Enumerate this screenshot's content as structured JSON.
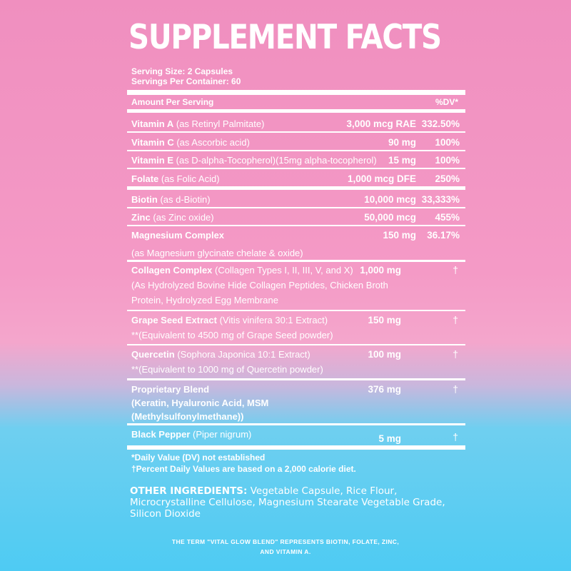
{
  "title": "SUPPLEMENT FACTS",
  "serving_size": "Serving Size: 2 Capsules",
  "servings_per_container": "Servings Per Container: 60",
  "amount_per_serving": "Amount Per Serving",
  "dv_header": "%DV*",
  "rows": [
    {
      "name": "Vitamin A",
      "desc": "(as Retinyl Palmitate)",
      "amount": "3,000 mcg RAE",
      "dv": "332.50%"
    },
    {
      "name": "Vitamin C",
      "desc": "(as Ascorbic acid)",
      "amount": "90 mg",
      "dv": "100%"
    },
    {
      "name": "Vitamin E",
      "desc": "(as D-alpha-Tocopherol)(15mg alpha-tocopherol)",
      "amount": "15 mg",
      "dv": "100%"
    },
    {
      "name": "Folate",
      "desc": "(as Folic Acid)",
      "amount": "1,000 mcg DFE",
      "dv": "250%"
    },
    {
      "name": "Biotin",
      "desc": "(as d-Biotin)",
      "amount": "10,000 mcg",
      "dv": "33,333%"
    },
    {
      "name": "Zinc",
      "desc": "(as Zinc oxide)",
      "amount": "50,000 mcg",
      "dv": "455%"
    },
    {
      "name": "Magnesium Complex",
      "desc": "(as Magnesium glycinate chelate & oxide)",
      "amount": "150 mg",
      "dv": "36.17%"
    },
    {
      "name": "Collagen Complex",
      "desc": "(Collagen Types I, II, III, V, and X)",
      "desc2": "(As Hydrolyzed Bovine Hide Collagen Peptides, Chicken Broth",
      "desc3": "Protein, Hydrolyzed Egg Membrane",
      "amount": "1,000 mg",
      "dv": "†"
    },
    {
      "name": "Grape Seed Extract",
      "desc": "(Vitis vinifera 30:1 Extract)",
      "desc2": "**(Equivalent to 4500 mg of Grape Seed powder)",
      "amount": "150 mg",
      "dv": "†"
    },
    {
      "name": "Quercetin",
      "desc": "(Sophora Japonica 10:1 Extract)",
      "desc2": "**(Equivalent to 1000 mg of Quercetin powder)",
      "amount": "100 mg",
      "dv": "†"
    },
    {
      "name": "Proprietary Blend",
      "desc2": "(Keratin, Hyaluronic Acid, MSM",
      "desc3": "(Methylsulfonylmethane))",
      "amount": "376 mg",
      "dv": "†"
    },
    {
      "name": "Black Pepper",
      "desc": "(Piper nigrum)",
      "amount": "5 mg",
      "dv": "†"
    }
  ],
  "footnotes": [
    "*Daily Value (DV) not established",
    "†Percent Daily Values are based on a 2,000 calorie diet."
  ],
  "other_ingredients_label": "OTHER INGREDIENTS:",
  "other_ingredients": "Vegetable Capsule, Rice Flour, Microcrystalline Cellulose, Magnesium Stearate Vegetable Grade, Silicon Dioxide",
  "term_note": "THE TERM \"VITAL GLOW BLEND\" REPRESENTS BIOTIN, FOLATE, ZINC, AND VITAMIN A.",
  "colors": {
    "pink": "#f49ac6",
    "blue": "#4ecbf3",
    "text": "#ffffff"
  }
}
